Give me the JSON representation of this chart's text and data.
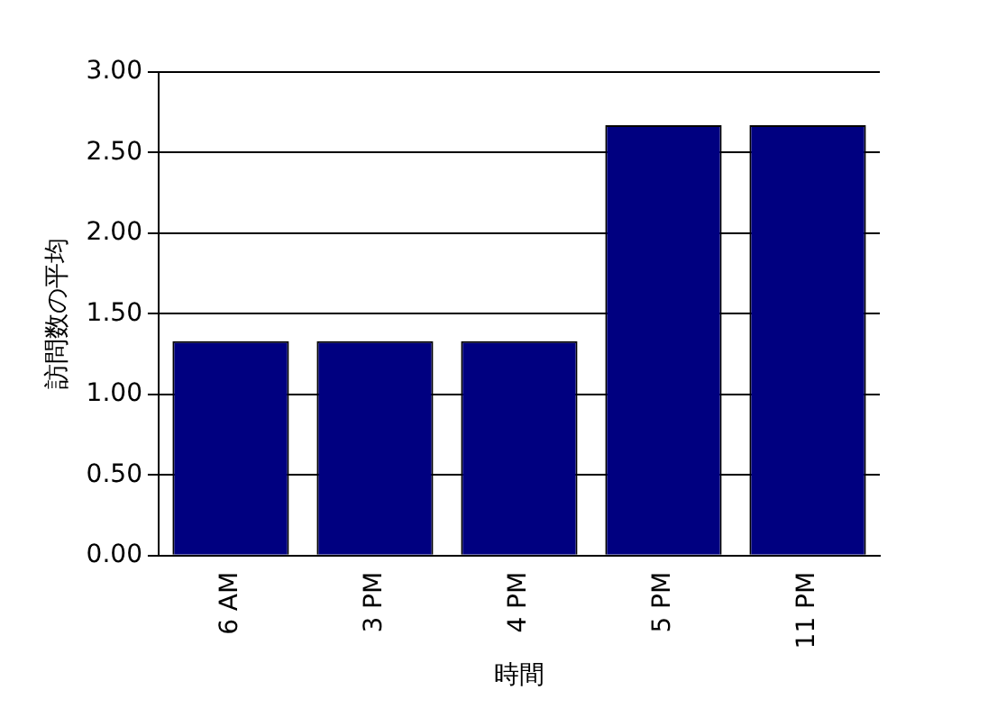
{
  "chart_data": {
    "type": "bar",
    "xlabel": "時間",
    "ylabel": "訪問数の平均",
    "categories": [
      "6 AM",
      "3 PM",
      "4 PM",
      "5 PM",
      "11 PM"
    ],
    "values": [
      1.33,
      1.33,
      1.33,
      2.67,
      2.67
    ],
    "color": "#000080",
    "ylim": [
      0,
      3
    ],
    "yticks": [
      {
        "value": 0,
        "label": "0.00"
      },
      {
        "value": 0.5,
        "label": "0.50"
      },
      {
        "value": 1,
        "label": "1.00"
      },
      {
        "value": 1.5,
        "label": "1.50"
      },
      {
        "value": 2,
        "label": "2.00"
      },
      {
        "value": 2.5,
        "label": "2.50"
      },
      {
        "value": 3,
        "label": "3.00"
      }
    ],
    "grid": "y",
    "legend": false
  }
}
